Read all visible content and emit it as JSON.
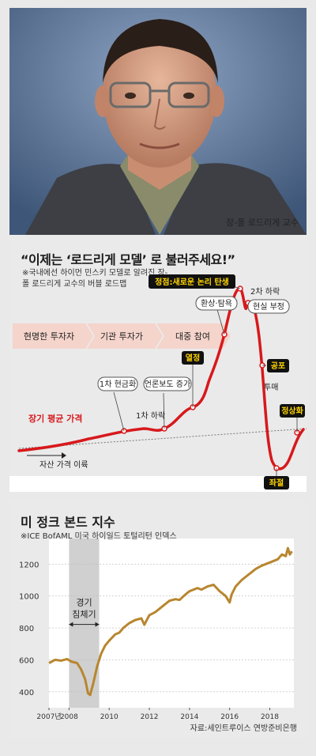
{
  "photo": {
    "caption": "장-폴 로드리게 교수"
  },
  "bubble": {
    "title": "“이제는 ‘로드리게 모델’ 로 불러주세요!”",
    "note": "※국내에선 하이먼 민스키 모델로 알려진 장-폴 로드리게 교수의 버블 로드맵",
    "phases": [
      "현명한 투자자",
      "기관 투자가",
      "대중 참여"
    ],
    "labels": {
      "peak": "정점:새로운 논리 탄생",
      "second_drop": "2차 하락",
      "euphoria": "환상·탐욕",
      "denial": "현실 부정",
      "enthusiasm": "열정",
      "fear": "공포",
      "capitulation": "투매",
      "first_cash": "1차 현금화",
      "media": "언론보도 증가",
      "first_drop": "1차 하락",
      "normalize": "정상화",
      "despair": "좌절",
      "long_avg": "장기 평균 가격",
      "takeoff": "자산 가격 이륙"
    },
    "colors": {
      "curve": "#d7191c",
      "phase_band": "#f5d6cf",
      "badge": "#111111"
    }
  },
  "chart_data": {
    "type": "line",
    "title": "미 정크 본드 지수",
    "subtitle": "※ICE BofAML 미국 하이일드 토털리턴 인덱스",
    "source": "자료:세인트루이스 연방준비은행",
    "ylim": [
      300,
      1360
    ],
    "yticks": [
      400,
      600,
      800,
      1000,
      1200
    ],
    "xlim": [
      2007,
      2019.2
    ],
    "xticks": [
      {
        "v": 2007,
        "label": "2007년"
      },
      {
        "v": 2008,
        "label": "2008"
      },
      {
        "v": 2010,
        "label": "2010"
      },
      {
        "v": 2012,
        "label": "2012"
      },
      {
        "v": 2014,
        "label": "2014"
      },
      {
        "v": 2016,
        "label": "2016"
      },
      {
        "v": 2018,
        "label": "2018"
      }
    ],
    "recession": {
      "from": 2008.0,
      "to": 2009.5,
      "label_line1": "경기",
      "label_line2": "침체기"
    },
    "series": [
      {
        "color": "#b8862f",
        "x": [
          2007.0,
          2007.3,
          2007.6,
          2007.9,
          2008.1,
          2008.4,
          2008.6,
          2008.8,
          2008.95,
          2009.05,
          2009.2,
          2009.4,
          2009.6,
          2009.8,
          2010.0,
          2010.3,
          2010.5,
          2010.7,
          2011.0,
          2011.3,
          2011.6,
          2011.75,
          2012.0,
          2012.3,
          2012.6,
          2013.0,
          2013.3,
          2013.5,
          2013.8,
          2014.0,
          2014.4,
          2014.6,
          2014.9,
          2015.2,
          2015.5,
          2015.8,
          2016.0,
          2016.1,
          2016.3,
          2016.6,
          2017.0,
          2017.3,
          2017.6,
          2018.0,
          2018.4,
          2018.6,
          2018.8,
          2018.9,
          2019.0,
          2019.1
        ],
        "values": [
          580,
          600,
          595,
          605,
          590,
          580,
          540,
          480,
          390,
          380,
          450,
          560,
          640,
          690,
          720,
          760,
          770,
          800,
          830,
          850,
          860,
          820,
          880,
          900,
          930,
          970,
          980,
          975,
          1010,
          1030,
          1050,
          1040,
          1060,
          1070,
          1030,
          1000,
          960,
          1010,
          1060,
          1100,
          1140,
          1170,
          1190,
          1210,
          1230,
          1260,
          1250,
          1300,
          1260,
          1280
        ]
      }
    ]
  }
}
